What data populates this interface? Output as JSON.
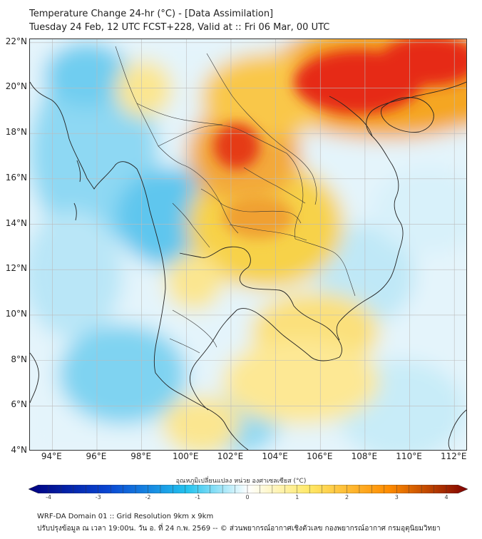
{
  "title": {
    "line1": "Temperature Change 24-hr (°C) - [Data Assimilation]",
    "line2": "Tuesday 24 Feb, 12 UTC FCST+228, Valid at :: Fri 06 Mar, 00 UTC"
  },
  "map": {
    "lat_labels": [
      "22°N",
      "20°N",
      "18°N",
      "16°N",
      "14°N",
      "12°N",
      "10°N",
      "8°N",
      "6°N",
      "4°N"
    ],
    "lon_labels": [
      "94°E",
      "96°E",
      "98°E",
      "100°E",
      "102°E",
      "104°E",
      "106°E",
      "108°E",
      "110°E",
      "112°E"
    ]
  },
  "colorbar": {
    "title": "อุณหภูมิเปลี่ยนแปลง หน่วย องศาเซลเซียส (°C)",
    "ticks": [
      "-4",
      "-3",
      "-2",
      "-1",
      "0",
      "1",
      "2",
      "3",
      "4"
    ],
    "colors": {
      "min": "#00007f",
      "cold_mid": "#0a46d2",
      "cool": "#22c2ee",
      "neutral": "#ffffff",
      "warm": "#ffe866",
      "hot": "#ff8c00",
      "max": "#7f0000"
    }
  },
  "footer": {
    "line1": "WRF-DA Domain 01 :: Grid Resolution 9km x 9km",
    "line2": "ปรับปรุงข้อมูล ณ เวลา 19:00น. วัน อ. ที่ 24 ก.พ. 2569 -- © ส่วนพยากรณ์อากาศเชิงตัวเลข กองพยากรณ์อากาศ กรมอุตุนิยมวิทยา"
  }
}
